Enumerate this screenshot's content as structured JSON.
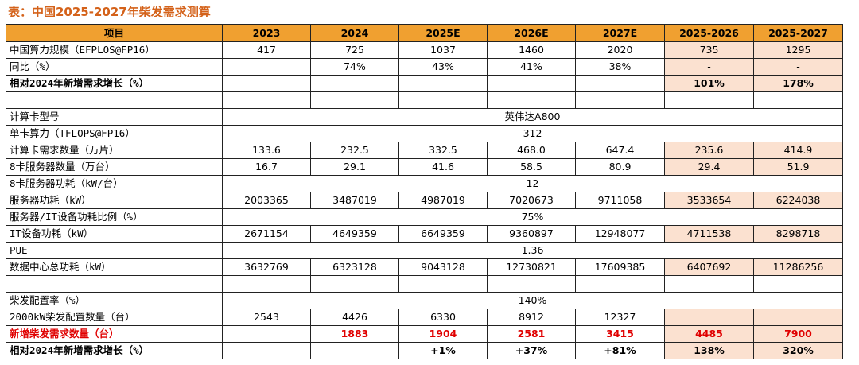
{
  "title": "表：中国2025-2027年柴发需求测算",
  "header": [
    "项目",
    "2023",
    "2024",
    "2025E",
    "2026E",
    "2027E",
    "2025-2026",
    "2025-2027"
  ],
  "rows": [
    {
      "label": "中国算力规模（EFPLOS@FP16）",
      "cells": [
        "417",
        "725",
        "1037",
        "1460",
        "2020",
        "735",
        "1295"
      ]
    },
    {
      "label": "同比（%）",
      "cells": [
        "",
        "74%",
        "43%",
        "41%",
        "38%",
        "-",
        "-"
      ]
    },
    {
      "label": "相对2024年新增需求增长（%）",
      "cells": [
        "",
        "",
        "",
        "",
        "",
        "101%",
        "178%"
      ]
    },
    {
      "label": "",
      "cells": [
        "",
        "",
        "",
        "",
        "",
        "",
        ""
      ]
    },
    {
      "label": "计算卡型号",
      "merged": "英伟达A800"
    },
    {
      "label": "单卡算力（TFLOPS@FP16）",
      "merged": "312"
    },
    {
      "label": "计算卡需求数量（万片）",
      "cells": [
        "133.6",
        "232.5",
        "332.5",
        "468.0",
        "647.4",
        "235.6",
        "414.9"
      ]
    },
    {
      "label": "8卡服务器数量（万台）",
      "cells": [
        "16.7",
        "29.1",
        "41.6",
        "58.5",
        "80.9",
        "29.4",
        "51.9"
      ]
    },
    {
      "label": "8卡服务器功耗（kW/台）",
      "merged": "12"
    },
    {
      "label": "服务器功耗（kW）",
      "cells": [
        "2003365",
        "3487019",
        "4987019",
        "7020673",
        "9711058",
        "3533654",
        "6224038"
      ]
    },
    {
      "label": "服务器/IT设备功耗比例（%）",
      "merged": "75%"
    },
    {
      "label": "IT设备功耗（kW）",
      "cells": [
        "2671154",
        "4649359",
        "6649359",
        "9360897",
        "12948077",
        "4711538",
        "8298718"
      ]
    },
    {
      "label": "PUE",
      "merged": "1.36"
    },
    {
      "label": "数据中心总功耗（kW）",
      "cells": [
        "3632769",
        "6323128",
        "9043128",
        "12730821",
        "17609385",
        "6407692",
        "11286256"
      ]
    },
    {
      "label": "",
      "cells": [
        "",
        "",
        "",
        "",
        "",
        "",
        ""
      ]
    },
    {
      "label": "柴发配置率（%）",
      "merged": "140%"
    },
    {
      "label": "2000kW柴发配置数量（台）",
      "cells": [
        "2543",
        "4426",
        "6330",
        "8912",
        "12327",
        "",
        ""
      ]
    },
    {
      "label": "新增柴发需求数量（台）",
      "cells": [
        "",
        "1883",
        "1904",
        "2581",
        "3415",
        "4485",
        "7900"
      ]
    },
    {
      "label": "相对2024年新增需求增长（%）",
      "cells": [
        "",
        "",
        "+1%",
        "+37%",
        "+81%",
        "138%",
        "320%"
      ]
    }
  ],
  "colors": {
    "header": "#f0a030",
    "highlight": "#fbe1d0",
    "title": "#d4621a",
    "red": "#e00000"
  }
}
